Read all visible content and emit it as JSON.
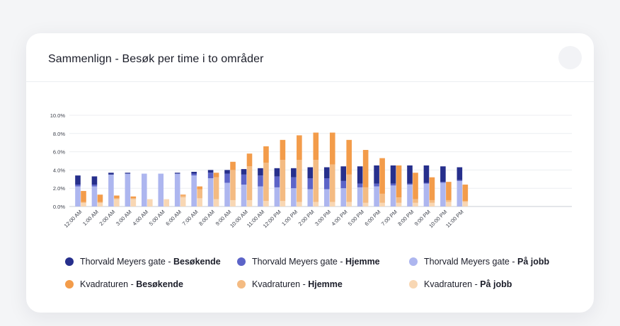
{
  "card": {
    "title": "Sammenlign - Besøk per time i to områder"
  },
  "colors": {
    "tm_besok": "#262f8c",
    "tm_hjemme": "#5c64c8",
    "tm_jobb": "#adb6ef",
    "kv_besok": "#f39c4a",
    "kv_hjemme": "#f4bb82",
    "kv_jobb": "#f8d7b4"
  },
  "legend": [
    {
      "area": "Thorvald Meyers gate",
      "sep": " - ",
      "kind": "Besøkende",
      "color": "#262f8c"
    },
    {
      "area": "Thorvald Meyers gate",
      "sep": " - ",
      "kind": "Hjemme",
      "color": "#5c64c8"
    },
    {
      "area": "Thorvald Meyers gate",
      "sep": " - ",
      "kind": "På jobb",
      "color": "#adb6ef"
    },
    {
      "area": "Kvadraturen",
      "sep": " - ",
      "kind": "Besøkende",
      "color": "#f39c4a"
    },
    {
      "area": "Kvadraturen",
      "sep": " - ",
      "kind": "Hjemme",
      "color": "#f4bb82"
    },
    {
      "area": "Kvadraturen",
      "sep": " - ",
      "kind": "På jobb",
      "color": "#f8d7b4"
    }
  ],
  "chart_data": {
    "type": "bar",
    "stacked": true,
    "grouped": true,
    "ylim": [
      0,
      10
    ],
    "yticks": [
      "0.0%",
      "2.0%",
      "4.0%",
      "6.0%",
      "8.0%",
      "10.0%"
    ],
    "grid": true,
    "legend_position": "bottom",
    "categories": [
      "12:00 AM",
      "1:00 AM",
      "2:00 AM",
      "3:00 AM",
      "4:00 AM",
      "5:00 AM",
      "6:00 AM",
      "7:00 AM",
      "8:00 AM",
      "9:00 AM",
      "10:00 AM",
      "11:00 AM",
      "12:00 PM",
      "1:00 PM",
      "2:00 PM",
      "3:00 PM",
      "4:00 PM",
      "5:00 PM",
      "6:00 PM",
      "7:00 PM",
      "8:00 PM",
      "9:00 PM",
      "10:00 PM",
      "11:00 PM"
    ],
    "groups": [
      {
        "area": "Thorvald Meyers gate",
        "series": [
          {
            "name": "Thorvald Meyers gate - På jobb",
            "color": "#adb6ef",
            "values": [
              2.2,
              2.2,
              3.5,
              3.6,
              3.6,
              3.6,
              3.6,
              3.4,
              3.1,
              2.6,
              2.4,
              2.2,
              2.1,
              2.0,
              1.9,
              1.9,
              2.0,
              2.1,
              2.2,
              2.3,
              2.4,
              2.5,
              2.6,
              2.8
            ]
          },
          {
            "name": "Thorvald Meyers gate - Hjemme",
            "color": "#5c64c8",
            "values": [
              0.2,
              0.2,
              0.0,
              0.0,
              0.0,
              0.0,
              0.0,
              0.2,
              0.6,
              1.0,
              1.1,
              1.2,
              1.2,
              1.2,
              1.2,
              1.2,
              0.8,
              0.4,
              0.3,
              0.2,
              0.1,
              0.1,
              0.1,
              0.1
            ]
          },
          {
            "name": "Thorvald Meyers gate - Besøkende",
            "color": "#262f8c",
            "values": [
              1.0,
              0.9,
              0.2,
              0.1,
              0.0,
              0.0,
              0.1,
              0.2,
              0.3,
              0.4,
              0.6,
              0.8,
              0.9,
              1.0,
              1.2,
              1.2,
              1.6,
              1.9,
              2.0,
              2.0,
              2.0,
              1.9,
              1.7,
              1.4
            ]
          }
        ]
      },
      {
        "area": "Kvadraturen",
        "series": [
          {
            "name": "Kvadraturen - På jobb",
            "color": "#f8d7b4",
            "values": [
              0.4,
              0.4,
              0.8,
              0.8,
              0.8,
              0.8,
              1.0,
              0.9,
              0.8,
              0.7,
              0.7,
              0.6,
              0.6,
              0.5,
              0.5,
              0.5,
              0.5,
              0.4,
              0.4,
              0.4,
              0.4,
              0.4,
              0.5,
              0.5
            ]
          },
          {
            "name": "Kvadraturen - Hjemme",
            "color": "#f4bb82",
            "values": [
              0.1,
              0.1,
              0.1,
              0.1,
              0.0,
              0.0,
              0.2,
              1.0,
              2.4,
              3.3,
              3.7,
              4.2,
              4.5,
              4.6,
              4.6,
              4.1,
              3.0,
              1.7,
              1.0,
              0.6,
              0.4,
              0.3,
              0.2,
              0.1
            ]
          },
          {
            "name": "Kvadraturen - Besøkende",
            "color": "#f39c4a",
            "values": [
              1.2,
              0.8,
              0.3,
              0.2,
              0.0,
              0.0,
              0.1,
              0.3,
              0.5,
              0.9,
              1.4,
              1.8,
              2.2,
              2.7,
              3.0,
              3.5,
              3.8,
              4.1,
              3.9,
              3.5,
              2.9,
              2.5,
              2.0,
              1.8
            ]
          }
        ]
      }
    ]
  }
}
